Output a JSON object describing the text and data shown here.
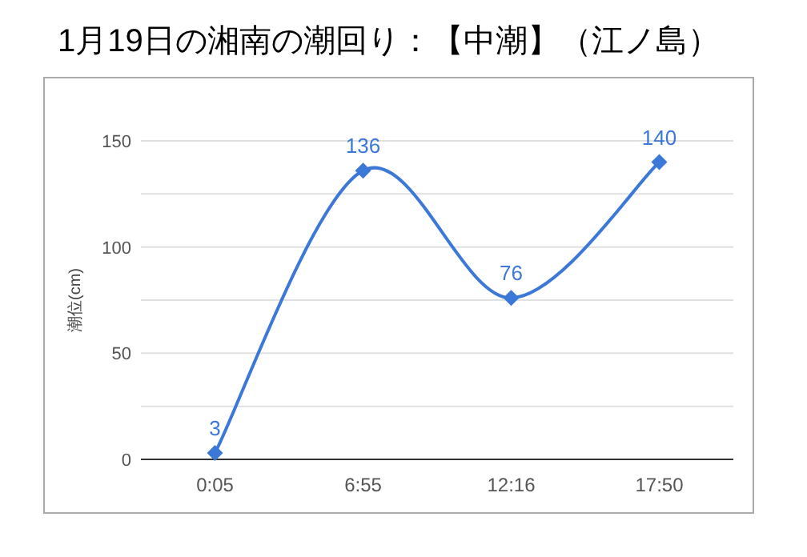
{
  "chart_data": {
    "type": "line",
    "title": "1月19日の湘南の潮回り：【中潮】（江ノ島）",
    "ylabel": "潮位(cm)",
    "categories": [
      "0:05",
      "6:55",
      "12:16",
      "17:50"
    ],
    "series": [
      {
        "color": "#3c78d8",
        "values": [
          3,
          136,
          76,
          140
        ]
      }
    ],
    "ylim": [
      0,
      150
    ],
    "yticks": [
      0,
      {
        "value": 25,
        "label": null
      },
      50,
      {
        "value": 75,
        "label": null
      },
      100,
      {
        "value": 125,
        "label": null
      },
      150
    ],
    "grid": "y",
    "marker": "diamond",
    "data_labels": true
  }
}
